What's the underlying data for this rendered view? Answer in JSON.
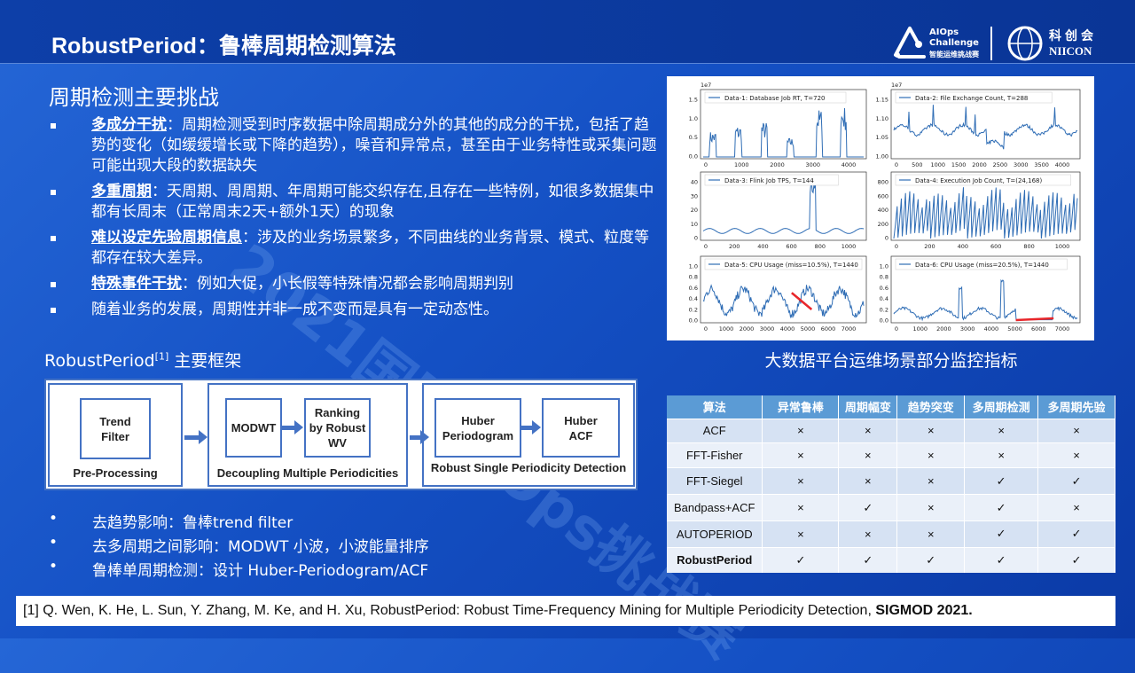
{
  "header": {
    "title": "RobustPeriod：鲁棒周期检测算法",
    "logo_aiops": [
      "AIOps",
      "Challenge",
      "智能运维挑战赛"
    ],
    "logo_niicon": [
      "科创会",
      "NIICON"
    ]
  },
  "watermark": "2021国际AIOps挑战赛",
  "challenges": {
    "heading": "周期检测主要挑战",
    "items": [
      {
        "term": "多成分干扰",
        "text": "：周期检测受到时序数据中除周期成分外的其他的成分的干扰，包括了趋势的变化（如缓缓增长或下降的趋势），噪音和异常点，甚至由于业务特性或采集问题可能出现大段的数据缺失"
      },
      {
        "term": "多重周期",
        "text": "：天周期、周周期、年周期可能交织存在,且存在一些特例，如很多数据集中都有长周末（正常周末2天+额外1天）的现象"
      },
      {
        "term": "难以设定先验周期信息",
        "text": "：涉及的业务场景繁多，不同曲线的业务背景、模式、粒度等都存在较大差异。"
      },
      {
        "term": "特殊事件干扰",
        "text": "：例如大促，小长假等特殊情况都会影响周期判别"
      },
      {
        "term": "",
        "text": "随着业务的发展，周期性并非一成不变而是具有一定动态性。"
      }
    ]
  },
  "framework": {
    "title": "RobustPeriod",
    "title_sup": "[1]",
    "title_suffix": " 主要框架",
    "trend_filter": "Trend Filter",
    "pre_processing": "Pre-Processing",
    "modwt": "MODWT",
    "ranking": "Ranking by Robust WV",
    "decoupling": "Decoupling Multiple Periodicities",
    "huber_periodogram": "Huber Periodogram",
    "huber_acf": "Huber ACF",
    "robust_single": "Robust Single Periodicity Detection"
  },
  "framework_bullets": [
    "去趋势影响：鲁棒trend filter",
    "去多周期之间影响：MODWT 小波，小波能量排序",
    "鲁棒单周期检测：设计 Huber-Periodogram/ACF"
  ],
  "charts": {
    "caption": "大数据平台运维场景部分监控指标",
    "panels": [
      {
        "legend": "Data-1: Database Job RT, T=720",
        "offset": "1e7",
        "yticks": [
          "0.0",
          "0.5",
          "1.0",
          "1.5"
        ],
        "xticks": [
          "0",
          "1000",
          "2000",
          "3000",
          "4000"
        ]
      },
      {
        "legend": "Data-2: File Exchange Count, T=288",
        "offset": "1e7",
        "yticks": [
          "1.00",
          "1.05",
          "1.10",
          "1.15"
        ],
        "xticks": [
          "0",
          "500",
          "1000",
          "1500",
          "2000",
          "2500",
          "3000",
          "3500",
          "4000"
        ]
      },
      {
        "legend": "Data-3: Flink Job TPS, T=144",
        "offset": "",
        "yticks": [
          "0",
          "10",
          "20",
          "30",
          "40"
        ],
        "xticks": [
          "0",
          "200",
          "400",
          "600",
          "800",
          "1000"
        ]
      },
      {
        "legend": "Data-4: Execution Job Count, T=(24,168)",
        "offset": "",
        "yticks": [
          "0",
          "200",
          "400",
          "600",
          "800"
        ],
        "xticks": [
          "0",
          "200",
          "400",
          "600",
          "800",
          "1000"
        ]
      },
      {
        "legend": "Data-5: CPU Usage (miss=10.5%), T=1440",
        "offset": "",
        "yticks": [
          "0.0",
          "0.2",
          "0.4",
          "0.6",
          "0.8",
          "1.0"
        ],
        "xticks": [
          "0",
          "1000",
          "2000",
          "3000",
          "4000",
          "5000",
          "6000",
          "7000"
        ]
      },
      {
        "legend": "Data-6: CPU Usage (miss=20.5%), T=1440",
        "offset": "",
        "yticks": [
          "0.0",
          "0.2",
          "0.4",
          "0.6",
          "0.8",
          "1.0"
        ],
        "xticks": [
          "0",
          "1000",
          "2000",
          "3000",
          "4000",
          "5000",
          "6000",
          "7000"
        ]
      }
    ],
    "colors": {
      "series": "#2f6db5",
      "missing": "#e8262a"
    }
  },
  "table": {
    "headers": [
      "算法",
      "异常鲁棒",
      "周期幅变",
      "趋势突变",
      "多周期检测",
      "多周期先验"
    ],
    "rows": [
      [
        "ACF",
        "×",
        "×",
        "×",
        "×",
        "×"
      ],
      [
        "FFT-Fisher",
        "×",
        "×",
        "×",
        "×",
        "×"
      ],
      [
        "FFT-Siegel",
        "×",
        "×",
        "×",
        "✓",
        "✓"
      ],
      [
        "Bandpass+ACF",
        "×",
        "✓",
        "×",
        "✓",
        "×"
      ],
      [
        "AUTOPERIOD",
        "×",
        "×",
        "×",
        "✓",
        "✓"
      ],
      [
        "RobustPeriod",
        "✓",
        "✓",
        "✓",
        "✓",
        "✓"
      ]
    ]
  },
  "footer": {
    "text": "[1] Q. Wen, K. He, L. Sun, Y. Zhang, M. Ke, and H. Xu, RobustPeriod: Robust Time-Frequency Mining for Multiple Periodicity Detection, ",
    "venue": "SIGMOD 2021."
  }
}
